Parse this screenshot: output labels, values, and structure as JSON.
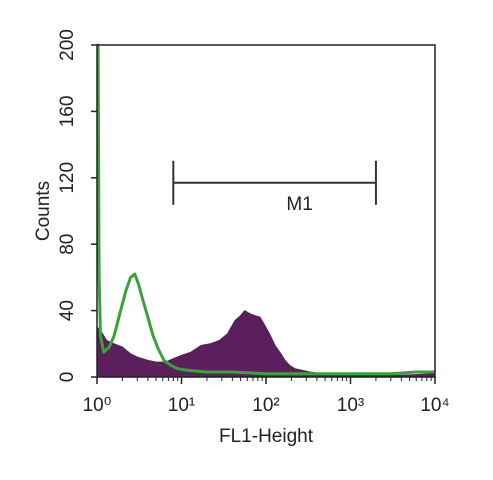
{
  "chart_data": {
    "type": "histogram-overlay",
    "xlabel": "FL1-Height",
    "ylabel": "Counts",
    "xscale": "log",
    "xlim": [
      1,
      10000
    ],
    "xticks": [
      {
        "value": 1,
        "label": "10⁰"
      },
      {
        "value": 10,
        "label": "10¹"
      },
      {
        "value": 100,
        "label": "10²"
      },
      {
        "value": 1000,
        "label": "10³"
      },
      {
        "value": 10000,
        "label": "10⁴"
      }
    ],
    "ylim": [
      0,
      200
    ],
    "yticks": [
      0,
      40,
      80,
      120,
      160,
      200
    ],
    "series": [
      {
        "color": "#5b1f5e",
        "fill": true,
        "x": [
          1,
          1.1,
          1.3,
          1.6,
          2,
          2.5,
          3,
          4,
          5,
          6.5,
          8,
          10,
          13,
          17,
          22,
          28,
          35,
          43,
          50,
          56,
          65,
          74,
          85,
          97,
          110,
          128,
          150,
          168,
          190,
          220,
          270,
          330,
          450,
          700,
          1000,
          2000,
          4000,
          10000
        ],
        "values": [
          30,
          28,
          22,
          20,
          18,
          14,
          12,
          10,
          9,
          9,
          11,
          13,
          15,
          19,
          20,
          22,
          26,
          34,
          37,
          40,
          38,
          37,
          36,
          31,
          26,
          19,
          14,
          10,
          7,
          5,
          4,
          3,
          2,
          2,
          1,
          1,
          1,
          2
        ]
      },
      {
        "color": "#3aa23a",
        "fill": false,
        "x": [
          1,
          1.03,
          1.06,
          1.1,
          1.2,
          1.4,
          1.6,
          1.9,
          2.2,
          2.5,
          2.8,
          3.1,
          3.5,
          4,
          4.6,
          5.3,
          6.2,
          7.5,
          9,
          12,
          20,
          40,
          100,
          300,
          1000,
          3000,
          6000,
          10000
        ],
        "values": [
          200,
          200,
          60,
          25,
          15,
          18,
          25,
          40,
          52,
          60,
          62,
          56,
          46,
          36,
          25,
          17,
          10,
          7,
          5,
          4,
          3,
          3,
          2,
          2,
          2,
          2,
          3,
          3
        ]
      }
    ],
    "gate": {
      "label": "M1",
      "range": [
        8,
        2000
      ],
      "level": 117
    }
  }
}
